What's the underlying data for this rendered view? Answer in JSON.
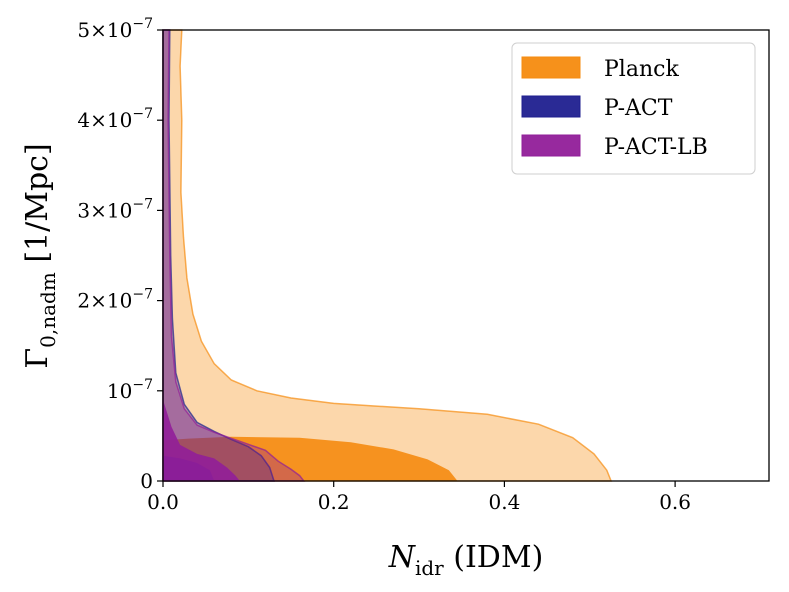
{
  "chart_data": {
    "type": "area",
    "title": "",
    "xlabel": {
      "main": "N",
      "sub": "idr",
      "suffix": " (IDM)"
    },
    "ylabel": {
      "main": "Γ",
      "sub": "0,nadm",
      "suffix": " [1/Mpc]"
    },
    "xlim": [
      0.0,
      0.71
    ],
    "ylim": [
      0,
      5e-07
    ],
    "xticks": [
      {
        "value": 0.0,
        "label": "0.0"
      },
      {
        "value": 0.2,
        "label": "0.2"
      },
      {
        "value": 0.4,
        "label": "0.4"
      },
      {
        "value": 0.6,
        "label": "0.6"
      }
    ],
    "yticks": [
      {
        "value": 0,
        "label": "0",
        "exp": ""
      },
      {
        "value": 1e-07,
        "label": "10",
        "exp": "−7"
      },
      {
        "value": 2e-07,
        "label": "2×10",
        "exp": "−7"
      },
      {
        "value": 3e-07,
        "label": "3×10",
        "exp": "−7"
      },
      {
        "value": 4e-07,
        "label": "4×10",
        "exp": "−7"
      },
      {
        "value": 5e-07,
        "label": "5×10",
        "exp": "−7"
      }
    ],
    "legend": {
      "placement": "top-right"
    },
    "series": [
      {
        "name": "Planck",
        "color": "#f58b0f",
        "outer": [
          [
            0.0,
            5e-07
          ],
          [
            0.022,
            5e-07
          ],
          [
            0.02,
            4.6e-07
          ],
          [
            0.022,
            4e-07
          ],
          [
            0.021,
            3.2e-07
          ],
          [
            0.024,
            2.7e-07
          ],
          [
            0.028,
            2.25e-07
          ],
          [
            0.035,
            1.85e-07
          ],
          [
            0.045,
            1.55e-07
          ],
          [
            0.06,
            1.3e-07
          ],
          [
            0.08,
            1.12e-07
          ],
          [
            0.11,
            1e-07
          ],
          [
            0.15,
            9.2e-08
          ],
          [
            0.2,
            8.6e-08
          ],
          [
            0.3,
            8e-08
          ],
          [
            0.38,
            7.4e-08
          ],
          [
            0.44,
            6.3e-08
          ],
          [
            0.48,
            4.8e-08
          ],
          [
            0.505,
            3e-08
          ],
          [
            0.52,
            1.2e-08
          ],
          [
            0.525,
            0.0
          ],
          [
            0.0,
            0.0
          ]
        ],
        "inner": [
          [
            0.0,
            1e-08
          ],
          [
            0.0,
            4.5e-08
          ],
          [
            0.03,
            4.7e-08
          ],
          [
            0.08,
            4.9e-08
          ],
          [
            0.16,
            4.8e-08
          ],
          [
            0.22,
            4.3e-08
          ],
          [
            0.27,
            3.5e-08
          ],
          [
            0.31,
            2.4e-08
          ],
          [
            0.335,
            1.2e-08
          ],
          [
            0.345,
            0.0
          ],
          [
            0.0,
            0.0
          ]
        ]
      },
      {
        "name": "P-ACT",
        "color": "#1f1f8f",
        "outer": [
          [
            0.0,
            5e-07
          ],
          [
            0.008,
            5e-07
          ],
          [
            0.007,
            4e-07
          ],
          [
            0.009,
            2.5e-07
          ],
          [
            0.011,
            1.8e-07
          ],
          [
            0.015,
            1.2e-07
          ],
          [
            0.025,
            8.5e-08
          ],
          [
            0.04,
            6.5e-08
          ],
          [
            0.06,
            5.5e-08
          ],
          [
            0.08,
            4.6e-08
          ],
          [
            0.1,
            3.8e-08
          ],
          [
            0.115,
            2.8e-08
          ],
          [
            0.125,
            1.5e-08
          ],
          [
            0.13,
            0.0
          ],
          [
            0.0,
            0.0
          ]
        ],
        "inner": [
          [
            0.0,
            2.8e-08
          ],
          [
            0.02,
            2.5e-08
          ],
          [
            0.04,
            2e-08
          ],
          [
            0.055,
            1.2e-08
          ],
          [
            0.06,
            0.0
          ],
          [
            0.0,
            0.0
          ]
        ]
      },
      {
        "name": "P-ACT-LB",
        "color": "#911e99",
        "outer": [
          [
            0.0,
            5e-07
          ],
          [
            0.007,
            5e-07
          ],
          [
            0.006,
            4e-07
          ],
          [
            0.008,
            2.5e-07
          ],
          [
            0.01,
            1.6e-07
          ],
          [
            0.015,
            1.1e-07
          ],
          [
            0.025,
            8e-08
          ],
          [
            0.04,
            6.2e-08
          ],
          [
            0.06,
            5.4e-08
          ],
          [
            0.09,
            4.4e-08
          ],
          [
            0.12,
            3.4e-08
          ],
          [
            0.135,
            2.2e-08
          ],
          [
            0.15,
            1.3e-08
          ],
          [
            0.16,
            6e-09
          ],
          [
            0.165,
            0.0
          ],
          [
            0.0,
            0.0
          ]
        ],
        "inner": [
          [
            0.0,
            9e-08
          ],
          [
            0.01,
            6e-08
          ],
          [
            0.02,
            4e-08
          ],
          [
            0.04,
            3e-08
          ],
          [
            0.06,
            2.5e-08
          ],
          [
            0.075,
            1.5e-08
          ],
          [
            0.085,
            6e-09
          ],
          [
            0.09,
            0.0
          ],
          [
            0.0,
            0.0
          ]
        ]
      }
    ]
  }
}
